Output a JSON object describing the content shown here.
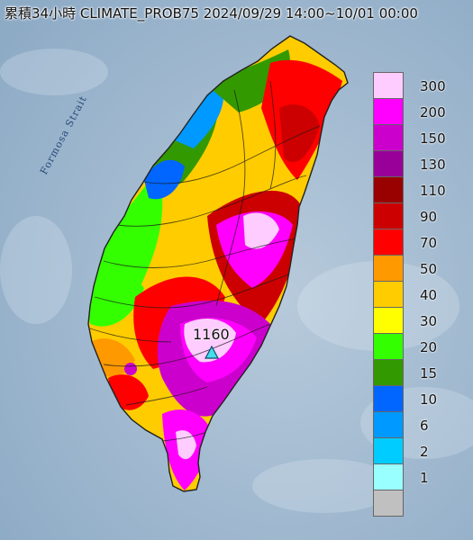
{
  "title": "累積34小時 CLIMATE_PROB75 2024/09/29 14:00~10/01 00:00",
  "strait_label": "Formosa Strait",
  "max_station": {
    "value": "1160",
    "marker": "triangle-icon"
  },
  "legend": [
    {
      "label": "300",
      "color": "#ffccff"
    },
    {
      "label": "200",
      "color": "#ff00ff"
    },
    {
      "label": "150",
      "color": "#cc00cc"
    },
    {
      "label": "130",
      "color": "#990099"
    },
    {
      "label": "110",
      "color": "#990000"
    },
    {
      "label": "90",
      "color": "#cc0000"
    },
    {
      "label": "70",
      "color": "#ff0000"
    },
    {
      "label": "50",
      "color": "#ff9900"
    },
    {
      "label": "40",
      "color": "#ffcc00"
    },
    {
      "label": "30",
      "color": "#ffff00"
    },
    {
      "label": "20",
      "color": "#33ff00"
    },
    {
      "label": "15",
      "color": "#339900"
    },
    {
      "label": "10",
      "color": "#0066ff"
    },
    {
      "label": "6",
      "color": "#0099ff"
    },
    {
      "label": "2",
      "color": "#00ccff"
    },
    {
      "label": "1",
      "color": "#99ffff"
    },
    {
      "label": "",
      "color": "#c0c0c0"
    }
  ]
}
